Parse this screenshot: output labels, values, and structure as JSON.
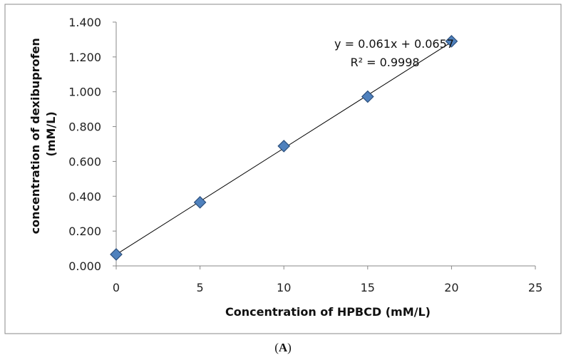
{
  "chart_data": {
    "type": "scatter",
    "title": "",
    "xlabel": "Concentration of HPBCD (mM/L)",
    "ylabel": [
      "concentration of dexibuprofen",
      "(mM/L)"
    ],
    "xlim": [
      0,
      25
    ],
    "ylim": [
      0,
      1.4
    ],
    "x_ticks": [
      "0",
      "5",
      "10",
      "15",
      "20",
      "25"
    ],
    "y_ticks": [
      "0.000",
      "0.200",
      "0.400",
      "0.600",
      "0.800",
      "1.000",
      "1.200",
      "1.400"
    ],
    "grid": false,
    "legend": "none",
    "series": [
      {
        "x": [
          0,
          5,
          10,
          15,
          20
        ],
        "y": [
          0.066,
          0.365,
          0.688,
          0.972,
          1.29
        ],
        "marker": "diamond",
        "color": "#4f81bd"
      }
    ],
    "trendline": {
      "type": "linear",
      "slope": 0.061,
      "intercept": 0.0657,
      "color": "#000000"
    },
    "annotations": {
      "equation": "y = 0.061x + 0.0657",
      "r_squared": "R² = 0.9998"
    }
  },
  "panel_label": {
    "open": "(",
    "letter": "A",
    "close": ")"
  }
}
